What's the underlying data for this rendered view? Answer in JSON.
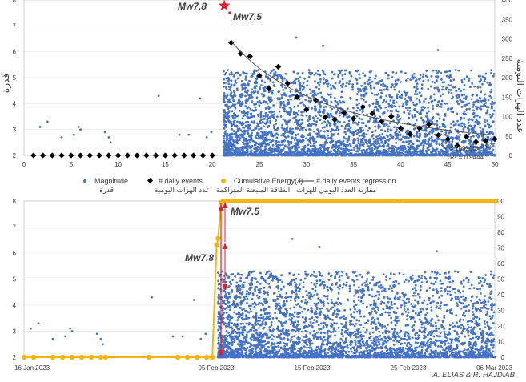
{
  "chart_data": [
    {
      "type": "scatter",
      "title": "",
      "xlabel": "",
      "ylabel": "قدرة",
      "y2label": "عدد الهزات اليومية",
      "xlim": [
        0,
        50
      ],
      "ylim": [
        2,
        8
      ],
      "y2lim": [
        0,
        400
      ],
      "x_ticks": [
        "0",
        "5",
        "10",
        "15",
        "20",
        "25",
        "30",
        "35",
        "40",
        "45",
        "50"
      ],
      "y_ticks": [
        "2",
        "3",
        "4",
        "5",
        "6",
        "7",
        "8"
      ],
      "y2_ticks": [
        "0",
        "50",
        "100",
        "150",
        "200",
        "250",
        "300",
        "350",
        "400"
      ],
      "mainshocks": [
        {
          "label": "Mw7.8",
          "x": 21.1,
          "y": 7.8
        },
        {
          "label": "Mw7.5",
          "x": 21.5,
          "y": 7.5
        }
      ],
      "regression": {
        "equation": "y = 199586x",
        "exponent": "-2.110",
        "r2": "R² = 0.9444",
        "a": 199586,
        "b": -2.11
      },
      "series": [
        {
          "name": "Magnitude",
          "name_ar": "قدرة",
          "color": "#4472c4",
          "pre_events": [
            [
              1.7,
              3.1
            ],
            [
              2.5,
              3.3
            ],
            [
              4.0,
              2.7
            ],
            [
              5.3,
              2.8
            ],
            [
              5.8,
              3.1
            ],
            [
              6.0,
              3.0
            ],
            [
              8.6,
              2.9
            ],
            [
              9.0,
              2.7
            ],
            [
              9.2,
              2.5
            ],
            [
              14.3,
              4.3
            ],
            [
              16.5,
              2.8
            ],
            [
              17.5,
              2.8
            ],
            [
              18.7,
              4.2
            ],
            [
              19.4,
              2.7
            ],
            [
              19.9,
              2.9
            ]
          ],
          "density": "dense scatter of aftershocks from day 21 to day 50, magnitudes 2.0 to 6.7"
        },
        {
          "name": "# daily events",
          "name_ar": "عدد الهزات اليومية",
          "color": "#000000",
          "axis": "right",
          "points": [
            [
              1,
              0
            ],
            [
              2,
              0
            ],
            [
              3,
              0
            ],
            [
              4,
              0
            ],
            [
              5,
              0
            ],
            [
              6,
              0
            ],
            [
              7,
              0
            ],
            [
              8,
              0
            ],
            [
              9,
              0
            ],
            [
              10,
              0
            ],
            [
              11,
              0
            ],
            [
              12,
              0
            ],
            [
              13,
              0
            ],
            [
              14,
              0
            ],
            [
              15,
              0
            ],
            [
              16,
              0
            ],
            [
              17,
              0
            ],
            [
              18,
              0
            ],
            [
              19,
              0
            ],
            [
              20,
              0
            ],
            [
              22,
              290
            ],
            [
              23,
              262
            ],
            [
              24,
              255
            ],
            [
              25,
              205
            ],
            [
              26,
              172
            ],
            [
              27,
              228
            ],
            [
              28,
              185
            ],
            [
              29,
              150
            ],
            [
              30,
              118
            ],
            [
              31,
              142
            ],
            [
              32,
              98
            ],
            [
              33,
              92
            ],
            [
              34,
              110
            ],
            [
              35,
              95
            ],
            [
              36,
              125
            ],
            [
              37,
              108
            ],
            [
              38,
              88
            ],
            [
              39,
              100
            ],
            [
              40,
              70
            ],
            [
              41,
              55
            ],
            [
              42,
              70
            ],
            [
              43,
              80
            ],
            [
              44,
              52
            ],
            [
              45,
              42
            ],
            [
              46,
              25
            ],
            [
              47,
              48
            ],
            [
              48,
              35
            ],
            [
              49,
              38
            ],
            [
              50,
              42
            ]
          ]
        },
        {
          "name": "Cumulative Energy(J)",
          "name_ar": "الطاقة المنبعثة المتراكمة",
          "color": "#f5b50f"
        },
        {
          "name": "# daily events regression",
          "name_ar": "مقاربة العدد اليومي للهزات",
          "color": "#000000"
        }
      ]
    },
    {
      "type": "scatter",
      "title": "",
      "xlabel": "",
      "ylabel": "",
      "ylim": [
        2,
        8
      ],
      "y2lim": [
        0,
        100
      ],
      "x_range_dates": [
        "16 Jan 2023",
        "06 Mar 2023"
      ],
      "x_ticks": [
        "16 Jan 2023",
        "05 Feb 2023",
        "15 Feb 2023",
        "25 Feb 2023",
        "06 Mar 2023"
      ],
      "y_ticks": [
        "2",
        "3",
        "4",
        "5",
        "6",
        "7",
        "8"
      ],
      "y2_ticks": [
        "0",
        "10",
        "20",
        "30",
        "40",
        "50",
        "60",
        "70",
        "80",
        "90",
        "100"
      ],
      "annotations": [
        {
          "label": "Mw7.5",
          "date": "06 Feb 2023"
        },
        {
          "label": "Mw7.8",
          "date": "06 Feb 2023"
        }
      ],
      "series": [
        {
          "name": "Magnitude",
          "color": "#4472c4",
          "pre_events": [
            [
              1.7,
              3.1
            ],
            [
              2.5,
              3.3
            ],
            [
              4.0,
              2.7
            ],
            [
              5.3,
              2.8
            ],
            [
              5.8,
              3.1
            ],
            [
              6.0,
              3.0
            ],
            [
              8.6,
              2.9
            ],
            [
              9.0,
              2.7
            ],
            [
              9.2,
              2.5
            ],
            [
              14.3,
              4.3
            ],
            [
              16.5,
              2.8
            ],
            [
              17.5,
              2.8
            ],
            [
              18.7,
              4.2
            ],
            [
              19.4,
              2.7
            ],
            [
              19.9,
              2.9
            ]
          ],
          "x_units": "days since 16 Jan 2023"
        },
        {
          "name": "Cumulative Energy(J)",
          "color": "#f5b50f",
          "axis": "right",
          "points": [
            [
              1,
              0
            ],
            [
              2,
              0
            ],
            [
              4,
              0
            ],
            [
              5,
              0
            ],
            [
              6,
              0
            ],
            [
              7,
              0
            ],
            [
              8,
              0
            ],
            [
              9,
              0
            ],
            [
              9.5,
              0
            ],
            [
              14,
              0
            ],
            [
              17,
              0
            ],
            [
              18,
              0
            ],
            [
              19,
              0
            ],
            [
              20,
              0
            ],
            [
              20.6,
              0
            ],
            [
              21.05,
              72
            ],
            [
              21.2,
              76
            ],
            [
              21.5,
              99
            ],
            [
              22,
              100
            ],
            [
              30,
              100
            ],
            [
              40,
              100
            ],
            [
              50,
              100
            ]
          ]
        }
      ]
    }
  ],
  "credit": "A. ELIAS & R. HAJDIAB",
  "legend": {
    "magnitude": "Magnitude",
    "magnitude_ar": "قدرة",
    "daily": "# daily events",
    "daily_ar": "عدد الهزات اليومية",
    "energy": "Cumulative Energy(J)",
    "energy_ar": "الطاقة المنبعثة المتراكمة",
    "regression": "# daily events regression",
    "regression_ar": "مقاربة العدد اليومي للهزات"
  },
  "colors": {
    "blue": "#4472c4",
    "gold": "#f5b50f",
    "red": "#e11d2e",
    "axis": "#9a9a9a",
    "text": "#404040"
  }
}
